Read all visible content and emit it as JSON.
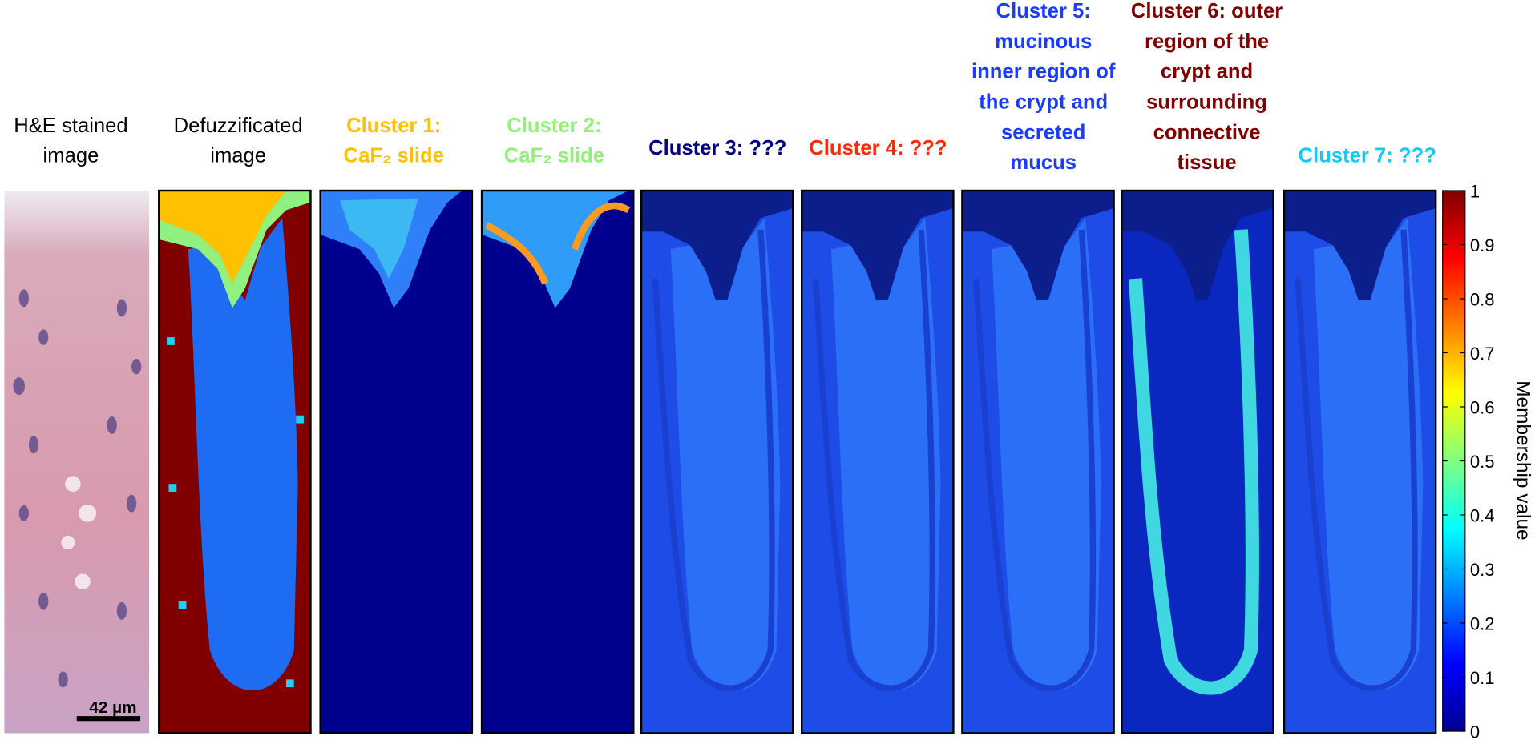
{
  "panels": [
    {
      "title": [
        "H&E stained",
        "image"
      ],
      "color": "#000000"
    },
    {
      "title": [
        "Defuzzificated",
        "image"
      ],
      "color": "#000000"
    },
    {
      "title": [
        "Cluster 1:",
        "CaF₂ slide"
      ],
      "color": "#ffc000"
    },
    {
      "title": [
        "Cluster 2:",
        "CaF₂ slide"
      ],
      "color": "#92f07a"
    },
    {
      "title": [
        "Cluster 3: ???"
      ],
      "color": "#00007f"
    },
    {
      "title": [
        "Cluster 4: ???"
      ],
      "color": "#ff2a00"
    },
    {
      "title": [
        "Cluster 5:",
        "mucinous",
        "inner region of",
        "the crypt and",
        "secreted",
        "mucus"
      ],
      "color": "#1a3cff"
    },
    {
      "title": [
        "Cluster 6: outer",
        "region of the",
        "crypt and",
        "surrounding",
        "connective",
        "tissue"
      ],
      "color": "#7f0000"
    },
    {
      "title": [
        "Cluster 7: ???"
      ],
      "color": "#17c8f0"
    }
  ],
  "scale_bar": "42 µm",
  "colorbar": {
    "label": "Membership value",
    "ylim": [
      0,
      1
    ],
    "yticks": [
      0,
      0.1,
      0.2,
      0.3,
      0.4,
      0.5,
      0.6,
      0.7,
      0.8,
      0.9,
      1
    ]
  }
}
